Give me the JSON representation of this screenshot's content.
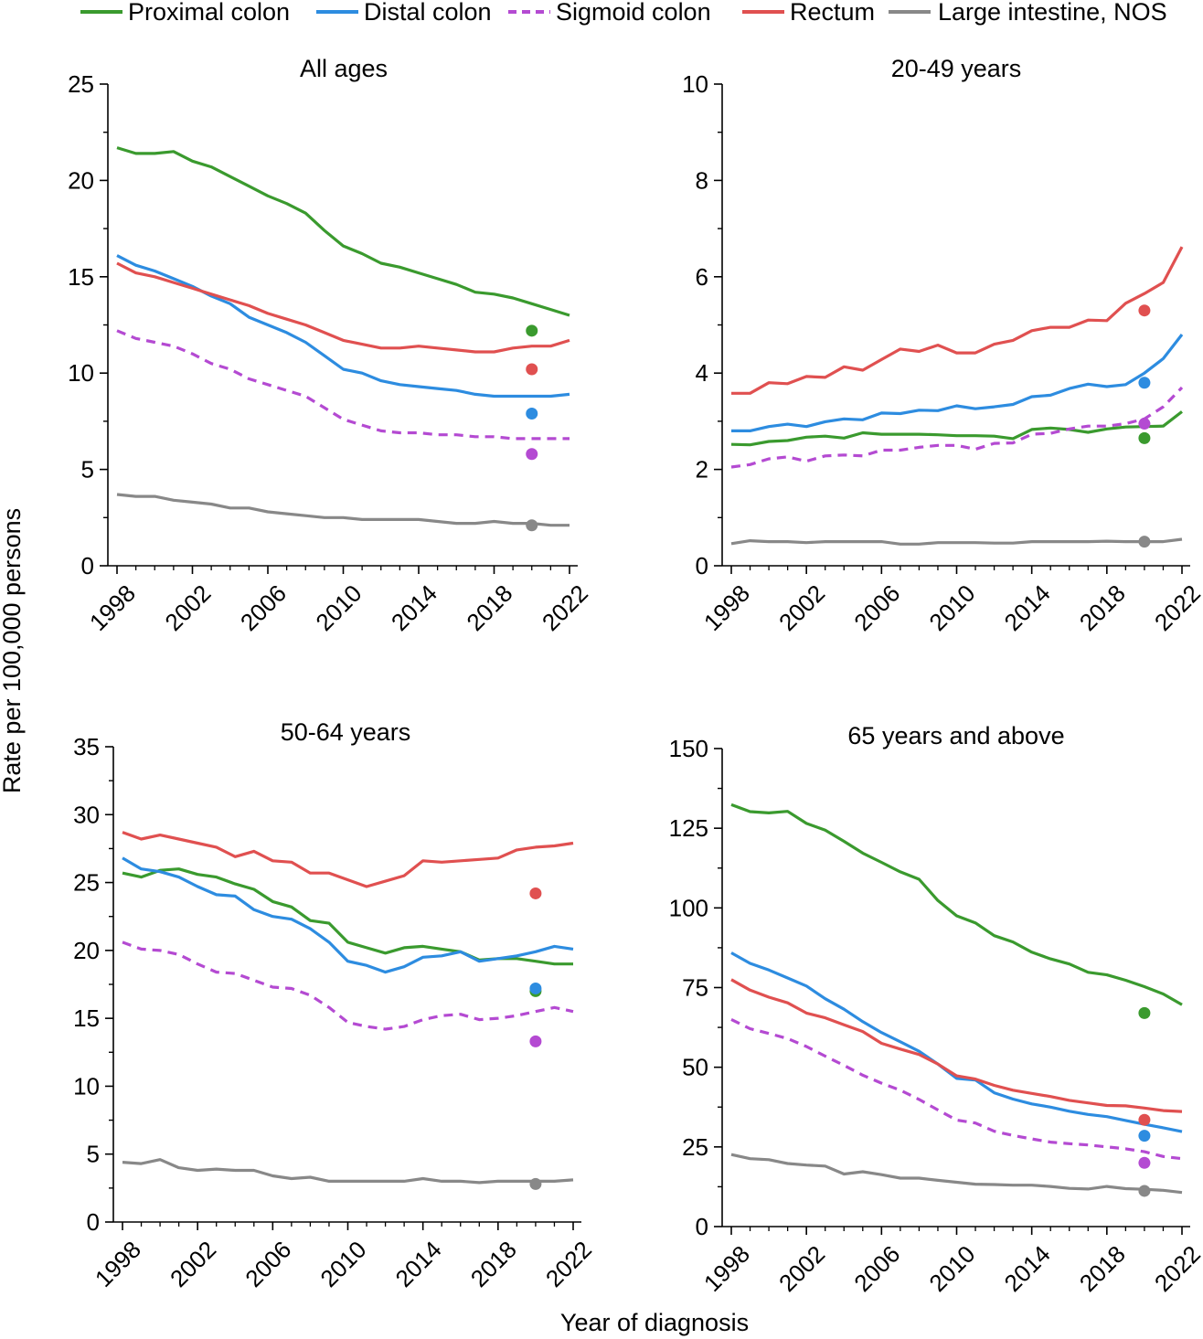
{
  "legend": [
    {
      "name": "Proximal colon",
      "color": "#3a9a2e",
      "dash": false
    },
    {
      "name": "Distal colon",
      "color": "#2d8ce0",
      "dash": false
    },
    {
      "name": "Sigmoid colon",
      "color": "#b44ad2",
      "dash": true
    },
    {
      "name": "Rectum",
      "color": "#e05050",
      "dash": false
    },
    {
      "name": "Large intestine, NOS",
      "color": "#888888",
      "dash": false
    }
  ],
  "ylabel": "Rate per 100,000 persons",
  "xlabel": "Year of diagnosis",
  "chart_data": [
    {
      "type": "line",
      "title": "All ages",
      "ylim": [
        0,
        25
      ],
      "yticks": [
        0,
        5,
        10,
        15,
        20,
        25
      ],
      "xlim": [
        1998,
        2022
      ],
      "xticks": [
        1998,
        2002,
        2006,
        2010,
        2014,
        2018,
        2022
      ],
      "x": [
        1998,
        1999,
        2000,
        2001,
        2002,
        2003,
        2004,
        2005,
        2006,
        2007,
        2008,
        2009,
        2010,
        2011,
        2012,
        2013,
        2014,
        2015,
        2016,
        2017,
        2018,
        2019,
        2020,
        2021,
        2022
      ],
      "series": [
        {
          "name": "Proximal colon",
          "values": [
            21.7,
            21.4,
            21.4,
            21.5,
            21.0,
            20.7,
            20.2,
            19.7,
            19.2,
            18.8,
            18.3,
            17.4,
            16.6,
            16.2,
            15.7,
            15.5,
            15.2,
            14.9,
            14.6,
            14.2,
            14.1,
            13.9,
            13.6,
            13.3,
            13.0
          ],
          "point2020": 12.2
        },
        {
          "name": "Distal colon",
          "values": [
            16.1,
            15.6,
            15.3,
            14.9,
            14.5,
            14.0,
            13.6,
            12.9,
            12.5,
            12.1,
            11.6,
            10.9,
            10.2,
            10.0,
            9.6,
            9.4,
            9.3,
            9.2,
            9.1,
            8.9,
            8.8,
            8.8,
            8.8,
            8.8,
            8.9
          ],
          "point2020": 7.9
        },
        {
          "name": "Sigmoid colon",
          "values": [
            12.2,
            11.8,
            11.6,
            11.4,
            11.0,
            10.5,
            10.2,
            9.7,
            9.4,
            9.1,
            8.8,
            8.2,
            7.6,
            7.3,
            7.0,
            6.9,
            6.9,
            6.8,
            6.8,
            6.7,
            6.7,
            6.6,
            6.6,
            6.6,
            6.6
          ],
          "point2020": 5.8
        },
        {
          "name": "Rectum",
          "values": [
            15.7,
            15.2,
            15.0,
            14.7,
            14.4,
            14.1,
            13.8,
            13.5,
            13.1,
            12.8,
            12.5,
            12.1,
            11.7,
            11.5,
            11.3,
            11.3,
            11.4,
            11.3,
            11.2,
            11.1,
            11.1,
            11.3,
            11.4,
            11.4,
            11.7
          ],
          "point2020": 10.2
        },
        {
          "name": "Large intestine, NOS",
          "values": [
            3.7,
            3.6,
            3.6,
            3.4,
            3.3,
            3.2,
            3.0,
            3.0,
            2.8,
            2.7,
            2.6,
            2.5,
            2.5,
            2.4,
            2.4,
            2.4,
            2.4,
            2.3,
            2.2,
            2.2,
            2.3,
            2.2,
            2.2,
            2.1,
            2.1
          ],
          "point2020": 2.1
        }
      ]
    },
    {
      "type": "line",
      "title": "20-49 years",
      "ylim": [
        0,
        10
      ],
      "yticks": [
        0,
        2,
        4,
        6,
        8,
        10
      ],
      "xlim": [
        1998,
        2022
      ],
      "xticks": [
        1998,
        2002,
        2006,
        2010,
        2014,
        2018,
        2022
      ],
      "x": [
        1998,
        1999,
        2000,
        2001,
        2002,
        2003,
        2004,
        2005,
        2006,
        2007,
        2008,
        2009,
        2010,
        2011,
        2012,
        2013,
        2014,
        2015,
        2016,
        2017,
        2018,
        2019,
        2020,
        2021,
        2022
      ],
      "series": [
        {
          "name": "Proximal colon",
          "values": [
            2.52,
            2.51,
            2.58,
            2.6,
            2.67,
            2.69,
            2.65,
            2.76,
            2.73,
            2.73,
            2.73,
            2.72,
            2.7,
            2.7,
            2.69,
            2.64,
            2.83,
            2.86,
            2.83,
            2.77,
            2.84,
            2.88,
            2.89,
            2.9,
            3.2
          ],
          "point2020": 2.65
        },
        {
          "name": "Distal colon",
          "values": [
            2.8,
            2.8,
            2.89,
            2.94,
            2.89,
            2.99,
            3.05,
            3.03,
            3.17,
            3.16,
            3.23,
            3.22,
            3.32,
            3.26,
            3.3,
            3.35,
            3.51,
            3.54,
            3.68,
            3.77,
            3.72,
            3.76,
            4.0,
            4.3,
            4.8
          ],
          "point2020": 3.8
        },
        {
          "name": "Sigmoid colon",
          "values": [
            2.05,
            2.1,
            2.22,
            2.26,
            2.17,
            2.28,
            2.3,
            2.28,
            2.4,
            2.4,
            2.46,
            2.5,
            2.5,
            2.42,
            2.54,
            2.55,
            2.73,
            2.75,
            2.84,
            2.9,
            2.9,
            2.95,
            3.05,
            3.3,
            3.7
          ],
          "point2020": 2.95
        },
        {
          "name": "Rectum",
          "values": [
            3.58,
            3.58,
            3.8,
            3.78,
            3.93,
            3.91,
            4.13,
            4.06,
            4.28,
            4.5,
            4.45,
            4.58,
            4.42,
            4.42,
            4.6,
            4.68,
            4.88,
            4.95,
            4.95,
            5.1,
            5.09,
            5.45,
            5.65,
            5.88,
            6.62
          ],
          "point2020": 5.3
        },
        {
          "name": "Large intestine, NOS",
          "values": [
            0.46,
            0.52,
            0.5,
            0.5,
            0.48,
            0.5,
            0.5,
            0.5,
            0.5,
            0.45,
            0.45,
            0.48,
            0.48,
            0.48,
            0.47,
            0.47,
            0.5,
            0.5,
            0.5,
            0.5,
            0.51,
            0.5,
            0.5,
            0.5,
            0.55
          ],
          "point2020": 0.5
        }
      ]
    },
    {
      "type": "line",
      "title": "50-64 years",
      "ylim": [
        0,
        35
      ],
      "yticks": [
        0,
        5,
        10,
        15,
        20,
        25,
        30,
        35
      ],
      "xlim": [
        1998,
        2022
      ],
      "xticks": [
        1998,
        2002,
        2006,
        2010,
        2014,
        2018,
        2022
      ],
      "x": [
        1998,
        1999,
        2000,
        2001,
        2002,
        2003,
        2004,
        2005,
        2006,
        2007,
        2008,
        2009,
        2010,
        2011,
        2012,
        2013,
        2014,
        2015,
        2016,
        2017,
        2018,
        2019,
        2020,
        2021,
        2022
      ],
      "series": [
        {
          "name": "Proximal colon",
          "values": [
            25.7,
            25.4,
            25.9,
            26.0,
            25.6,
            25.4,
            24.9,
            24.5,
            23.6,
            23.2,
            22.2,
            22.0,
            20.6,
            20.2,
            19.8,
            20.2,
            20.3,
            20.1,
            19.9,
            19.3,
            19.4,
            19.4,
            19.2,
            19.0,
            19.0
          ],
          "point2020": 17.0
        },
        {
          "name": "Distal colon",
          "values": [
            26.8,
            26.0,
            25.8,
            25.4,
            24.7,
            24.1,
            24.0,
            23.0,
            22.5,
            22.3,
            21.6,
            20.6,
            19.2,
            18.9,
            18.4,
            18.8,
            19.5,
            19.6,
            19.9,
            19.2,
            19.4,
            19.6,
            19.9,
            20.3,
            20.1
          ],
          "point2020": 17.2
        },
        {
          "name": "Sigmoid colon",
          "values": [
            20.6,
            20.1,
            20.0,
            19.7,
            19.0,
            18.4,
            18.3,
            17.8,
            17.3,
            17.2,
            16.7,
            15.8,
            14.7,
            14.4,
            14.2,
            14.4,
            14.9,
            15.2,
            15.3,
            14.9,
            15.0,
            15.2,
            15.5,
            15.8,
            15.5
          ],
          "point2020": 13.3
        },
        {
          "name": "Rectum",
          "values": [
            28.7,
            28.2,
            28.5,
            28.2,
            27.9,
            27.6,
            26.9,
            27.3,
            26.6,
            26.5,
            25.7,
            25.7,
            25.2,
            24.7,
            25.1,
            25.5,
            26.6,
            26.5,
            26.6,
            26.7,
            26.8,
            27.4,
            27.6,
            27.7,
            27.9
          ],
          "point2020": 24.2
        },
        {
          "name": "Large intestine, NOS",
          "values": [
            4.4,
            4.3,
            4.6,
            4.0,
            3.8,
            3.9,
            3.8,
            3.8,
            3.4,
            3.2,
            3.3,
            3.0,
            3.0,
            3.0,
            3.0,
            3.0,
            3.2,
            3.0,
            3.0,
            2.9,
            3.0,
            3.0,
            3.0,
            3.0,
            3.1
          ],
          "point2020": 2.8
        }
      ]
    },
    {
      "type": "line",
      "title": "65 years and above",
      "ylim": [
        0,
        150
      ],
      "yticks": [
        0,
        25,
        50,
        75,
        100,
        125,
        150
      ],
      "xlim": [
        1998,
        2022
      ],
      "xticks": [
        1998,
        2002,
        2006,
        2010,
        2014,
        2018,
        2022
      ],
      "x": [
        1998,
        1999,
        2000,
        2001,
        2002,
        2003,
        2004,
        2005,
        2006,
        2007,
        2008,
        2009,
        2010,
        2011,
        2012,
        2013,
        2014,
        2015,
        2016,
        2017,
        2018,
        2019,
        2020,
        2021,
        2022
      ],
      "series": [
        {
          "name": "Proximal colon",
          "values": [
            132.4,
            130.2,
            129.8,
            130.3,
            126.5,
            124.4,
            120.9,
            117.2,
            114.3,
            111.3,
            109.0,
            102.3,
            97.5,
            95.3,
            91.3,
            89.3,
            86.1,
            84.0,
            82.4,
            79.8,
            79.0,
            77.3,
            75.3,
            73.0,
            69.6
          ],
          "point2020": 67.0
        },
        {
          "name": "Distal colon",
          "values": [
            85.9,
            82.6,
            80.5,
            78.0,
            75.5,
            71.5,
            68.2,
            64.3,
            60.9,
            58.0,
            55.0,
            51.0,
            46.5,
            46.0,
            42.0,
            40.0,
            38.5,
            37.5,
            36.2,
            35.2,
            34.5,
            33.3,
            32.1,
            31.0,
            29.8
          ],
          "point2020": 28.5
        },
        {
          "name": "Sigmoid colon",
          "values": [
            65.0,
            62.1,
            60.6,
            59.0,
            56.5,
            53.5,
            50.6,
            47.5,
            45.0,
            42.8,
            39.9,
            36.6,
            33.4,
            32.5,
            29.9,
            28.6,
            27.5,
            26.5,
            26.0,
            25.6,
            25.0,
            24.4,
            23.5,
            22.0,
            21.3
          ],
          "point2020": 20.0
        },
        {
          "name": "Rectum",
          "values": [
            77.5,
            74.2,
            72.0,
            70.2,
            67.0,
            65.5,
            63.3,
            61.2,
            57.5,
            55.7,
            54.0,
            51.0,
            47.3,
            46.3,
            44.3,
            42.8,
            41.8,
            40.8,
            39.6,
            38.8,
            38.0,
            37.9,
            37.2,
            36.4,
            36.1
          ],
          "point2020": 33.5
        },
        {
          "name": "Large intestine, NOS",
          "values": [
            22.6,
            21.3,
            21.0,
            19.8,
            19.3,
            19.0,
            16.5,
            17.2,
            16.3,
            15.2,
            15.2,
            14.5,
            13.9,
            13.3,
            13.2,
            13.0,
            13.0,
            12.6,
            12.0,
            11.8,
            12.6,
            11.9,
            11.7,
            11.4,
            10.7
          ],
          "point2020": 11.2
        }
      ]
    }
  ]
}
